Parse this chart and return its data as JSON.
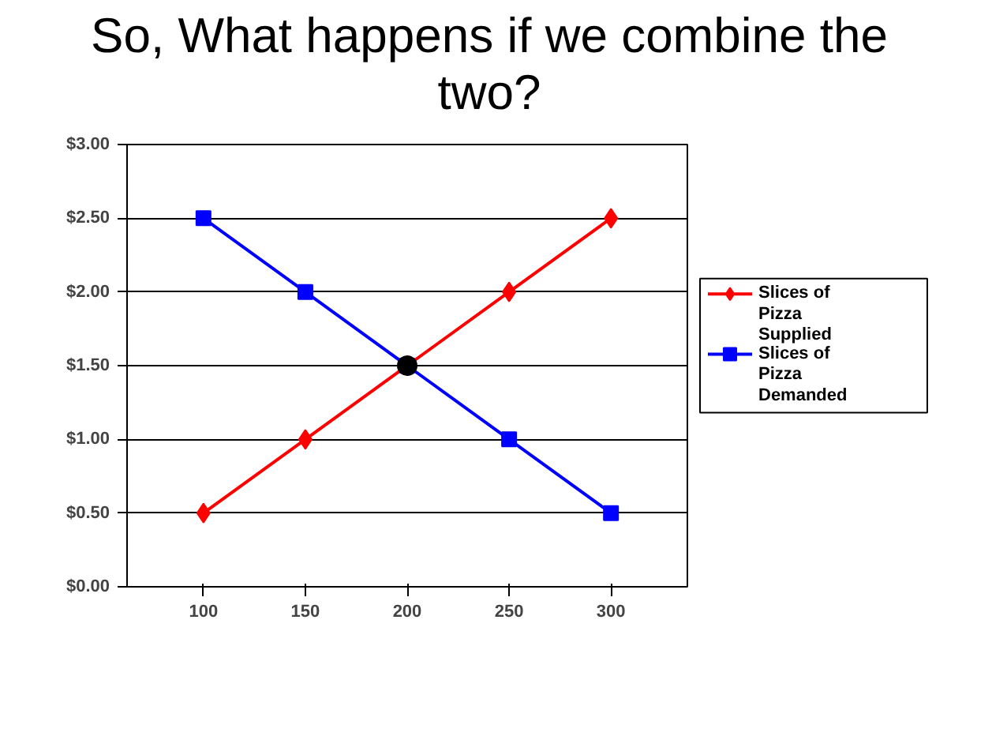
{
  "chart_data": {
    "type": "line",
    "title": "So, What happens if we combine the two?",
    "categories": [
      "100",
      "150",
      "200",
      "250",
      "300"
    ],
    "series": [
      {
        "name": "Slices of Pizza Supplied",
        "color": "#ff0000",
        "marker": "diamond",
        "values": [
          0.5,
          1.0,
          1.5,
          2.0,
          2.5
        ]
      },
      {
        "name": "Slices of Pizza Demanded",
        "color": "#0000ff",
        "marker": "square",
        "values": [
          2.5,
          2.0,
          1.5,
          1.0,
          0.5
        ]
      },
      {
        "type": "scatter",
        "color": "#000000",
        "marker": "circle",
        "values": [
          null,
          null,
          1.5,
          null,
          null
        ]
      }
    ],
    "ylim": [
      0,
      3
    ],
    "yticks": [
      {
        "value": 0,
        "label": "$0.00"
      },
      {
        "value": 0.5,
        "label": "$0.50"
      },
      {
        "value": 1,
        "label": "$1.00"
      },
      {
        "value": 1.5,
        "label": "$1.50"
      },
      {
        "value": 2,
        "label": "$2.00"
      },
      {
        "value": 2.5,
        "label": "$2.50"
      },
      {
        "value": 3,
        "label": "$3.00"
      }
    ],
    "grid": "y",
    "legend": "right",
    "line_style": "solid"
  }
}
